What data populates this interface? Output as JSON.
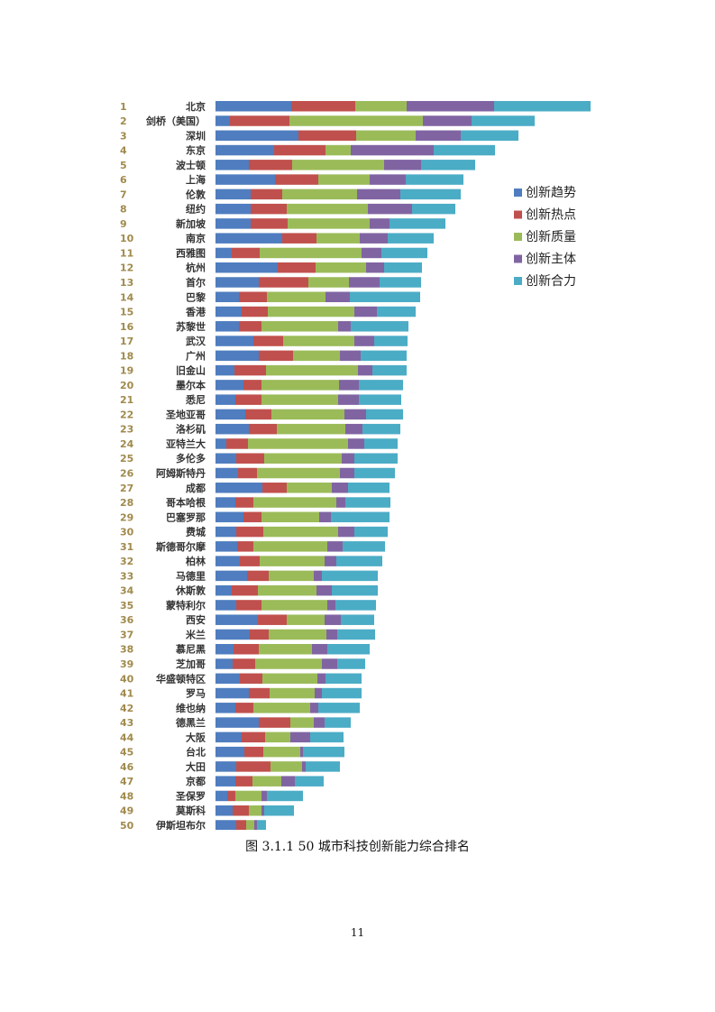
{
  "caption": "图 3.1.1 50 城市科技创新能力综合排名",
  "page_number": "11",
  "chart_data": {
    "type": "bar",
    "orientation": "horizontal",
    "stacked": true,
    "title": "",
    "xlabel": "",
    "ylabel": "",
    "legend_position": "right",
    "grid": false,
    "ranks": [
      "1",
      "2",
      "3",
      "4",
      "5",
      "6",
      "7",
      "8",
      "9",
      "10",
      "11",
      "12",
      "13",
      "14",
      "15",
      "16",
      "17",
      "18",
      "19",
      "20",
      "21",
      "22",
      "23",
      "24",
      "25",
      "26",
      "27",
      "28",
      "29",
      "30",
      "31",
      "32",
      "33",
      "34",
      "35",
      "36",
      "37",
      "38",
      "39",
      "40",
      "41",
      "42",
      "43",
      "44",
      "45",
      "46",
      "47",
      "48",
      "49",
      "50"
    ],
    "categories": [
      "北京",
      "剑桥（美国）",
      "深圳",
      "东京",
      "波士顿",
      "上海",
      "伦敦",
      "纽约",
      "新加坡",
      "南京",
      "西雅图",
      "杭州",
      "首尔",
      "巴黎",
      "香港",
      "苏黎世",
      "武汉",
      "广州",
      "旧金山",
      "墨尔本",
      "悉尼",
      "圣地亚哥",
      "洛杉矶",
      "亚特兰大",
      "多伦多",
      "阿姆斯特丹",
      "成都",
      "哥本哈根",
      "巴塞罗那",
      "费城",
      "斯德哥尔摩",
      "柏林",
      "马德里",
      "休斯敦",
      "蒙特利尔",
      "西安",
      "米兰",
      "慕尼黑",
      "芝加哥",
      "华盛顿特区",
      "罗马",
      "维也纳",
      "德黑兰",
      "大阪",
      "台北",
      "大田",
      "京都",
      "圣保罗",
      "莫斯科",
      "伊斯坦布尔"
    ],
    "series": [
      {
        "name": "创新趋势",
        "color": "#4f7dbf",
        "values": [
          84,
          16,
          92,
          65,
          37,
          66,
          39,
          39,
          39,
          74,
          18,
          69,
          48,
          26,
          29,
          26,
          42,
          48,
          21,
          31,
          22,
          33,
          37,
          12,
          23,
          25,
          52,
          22,
          31,
          23,
          24,
          27,
          35,
          18,
          23,
          47,
          38,
          20,
          19,
          27,
          37,
          22,
          48,
          29,
          32,
          23,
          22,
          13,
          19,
          23
        ]
      },
      {
        "name": "创新热点",
        "color": "#c0504d",
        "values": [
          71,
          66,
          64,
          57,
          48,
          48,
          35,
          40,
          41,
          38,
          31,
          42,
          55,
          31,
          29,
          25,
          33,
          38,
          35,
          20,
          29,
          29,
          31,
          24,
          31,
          21,
          27,
          20,
          20,
          30,
          18,
          22,
          24,
          29,
          28,
          32,
          21,
          28,
          25,
          25,
          23,
          20,
          35,
          26,
          21,
          38,
          19,
          9,
          18,
          11
        ]
      },
      {
        "name": "创新质量",
        "color": "#9bbb59",
        "values": [
          57,
          148,
          66,
          28,
          102,
          57,
          83,
          90,
          91,
          48,
          113,
          56,
          45,
          65,
          96,
          85,
          79,
          52,
          102,
          86,
          85,
          81,
          76,
          111,
          86,
          92,
          50,
          92,
          64,
          83,
          82,
          72,
          50,
          65,
          73,
          42,
          64,
          59,
          74,
          61,
          50,
          63,
          26,
          28,
          41,
          35,
          32,
          29,
          14,
          9
        ]
      },
      {
        "name": "创新主体",
        "color": "#8064a2",
        "values": [
          97,
          54,
          50,
          92,
          41,
          40,
          48,
          49,
          22,
          31,
          22,
          20,
          34,
          27,
          25,
          14,
          22,
          23,
          16,
          22,
          23,
          24,
          19,
          18,
          14,
          16,
          18,
          10,
          13,
          18,
          17,
          13,
          9,
          17,
          9,
          18,
          12,
          17,
          17,
          9,
          8,
          9,
          12,
          22,
          3,
          4,
          15,
          6,
          3,
          3
        ]
      },
      {
        "name": "创新合力",
        "color": "#4bacc6",
        "values": [
          107,
          70,
          64,
          68,
          60,
          64,
          67,
          48,
          62,
          51,
          51,
          42,
          46,
          78,
          43,
          64,
          37,
          51,
          38,
          49,
          47,
          41,
          42,
          37,
          48,
          45,
          46,
          50,
          65,
          37,
          47,
          51,
          62,
          51,
          45,
          37,
          42,
          47,
          31,
          40,
          44,
          46,
          29,
          37,
          46,
          38,
          32,
          40,
          33,
          10
        ]
      }
    ]
  }
}
